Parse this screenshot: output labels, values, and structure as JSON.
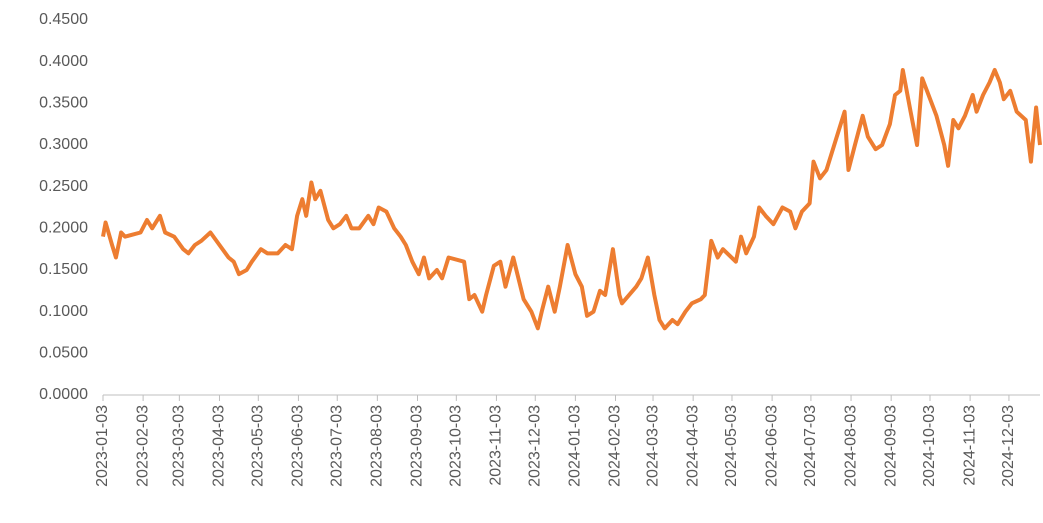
{
  "chart_data": {
    "type": "line",
    "color": "#ED7D31",
    "x": [
      "2023-01-03",
      "2023-01-05",
      "2023-01-10",
      "2023-01-13",
      "2023-01-17",
      "2023-01-20",
      "2023-02-01",
      "2023-02-06",
      "2023-02-10",
      "2023-02-16",
      "2023-02-20",
      "2023-02-27",
      "2023-03-06",
      "2023-03-10",
      "2023-03-15",
      "2023-03-20",
      "2023-03-27",
      "2023-04-03",
      "2023-04-10",
      "2023-04-14",
      "2023-04-18",
      "2023-04-24",
      "2023-04-28",
      "2023-05-05",
      "2023-05-10",
      "2023-05-18",
      "2023-05-24",
      "2023-05-29",
      "2023-06-02",
      "2023-06-06",
      "2023-06-09",
      "2023-06-13",
      "2023-06-16",
      "2023-06-20",
      "2023-06-26",
      "2023-06-30",
      "2023-07-05",
      "2023-07-10",
      "2023-07-14",
      "2023-07-20",
      "2023-07-27",
      "2023-07-31",
      "2023-08-04",
      "2023-08-10",
      "2023-08-16",
      "2023-08-21",
      "2023-08-25",
      "2023-08-30",
      "2023-09-04",
      "2023-09-08",
      "2023-09-12",
      "2023-09-18",
      "2023-09-22",
      "2023-09-27",
      "2023-10-09",
      "2023-10-13",
      "2023-10-17",
      "2023-10-23",
      "2023-10-26",
      "2023-11-01",
      "2023-11-06",
      "2023-11-10",
      "2023-11-16",
      "2023-11-20",
      "2023-11-24",
      "2023-11-30",
      "2023-12-05",
      "2023-12-08",
      "2023-12-13",
      "2023-12-18",
      "2023-12-22",
      "2023-12-28",
      "2024-01-03",
      "2024-01-08",
      "2024-01-12",
      "2024-01-17",
      "2024-01-22",
      "2024-01-26",
      "2024-02-01",
      "2024-02-06",
      "2024-02-08",
      "2024-02-19",
      "2024-02-23",
      "2024-02-28",
      "2024-03-04",
      "2024-03-08",
      "2024-03-12",
      "2024-03-18",
      "2024-03-22",
      "2024-03-28",
      "2024-04-02",
      "2024-04-09",
      "2024-04-12",
      "2024-04-17",
      "2024-04-22",
      "2024-04-26",
      "2024-05-06",
      "2024-05-10",
      "2024-05-14",
      "2024-05-20",
      "2024-05-24",
      "2024-05-29",
      "2024-06-04",
      "2024-06-11",
      "2024-06-17",
      "2024-06-21",
      "2024-06-26",
      "2024-07-02",
      "2024-07-05",
      "2024-07-10",
      "2024-07-15",
      "2024-07-22",
      "2024-07-29",
      "2024-08-01",
      "2024-08-06",
      "2024-08-12",
      "2024-08-16",
      "2024-08-22",
      "2024-08-27",
      "2024-09-02",
      "2024-09-06",
      "2024-09-10",
      "2024-09-12",
      "2024-09-18",
      "2024-09-23",
      "2024-09-27",
      "2024-10-08",
      "2024-10-14",
      "2024-10-17",
      "2024-10-21",
      "2024-10-25",
      "2024-10-30",
      "2024-11-05",
      "2024-11-08",
      "2024-11-13",
      "2024-11-18",
      "2024-11-22",
      "2024-11-26",
      "2024-11-29",
      "2024-12-04",
      "2024-12-09",
      "2024-12-16",
      "2024-12-20",
      "2024-12-24",
      "2024-12-27"
    ],
    "values": [
      0.19,
      0.207,
      0.18,
      0.165,
      0.195,
      0.19,
      0.195,
      0.21,
      0.2,
      0.215,
      0.195,
      0.19,
      0.175,
      0.17,
      0.18,
      0.185,
      0.195,
      0.18,
      0.165,
      0.16,
      0.145,
      0.15,
      0.16,
      0.175,
      0.17,
      0.17,
      0.18,
      0.175,
      0.215,
      0.235,
      0.215,
      0.255,
      0.235,
      0.245,
      0.21,
      0.2,
      0.205,
      0.215,
      0.2,
      0.2,
      0.215,
      0.205,
      0.225,
      0.22,
      0.2,
      0.19,
      0.18,
      0.16,
      0.145,
      0.165,
      0.14,
      0.15,
      0.14,
      0.165,
      0.16,
      0.115,
      0.12,
      0.1,
      0.12,
      0.155,
      0.16,
      0.13,
      0.165,
      0.14,
      0.115,
      0.1,
      0.08,
      0.1,
      0.13,
      0.1,
      0.13,
      0.18,
      0.145,
      0.13,
      0.095,
      0.1,
      0.125,
      0.12,
      0.175,
      0.12,
      0.11,
      0.13,
      0.14,
      0.165,
      0.12,
      0.09,
      0.08,
      0.09,
      0.085,
      0.1,
      0.11,
      0.115,
      0.12,
      0.185,
      0.165,
      0.175,
      0.16,
      0.19,
      0.17,
      0.19,
      0.225,
      0.215,
      0.205,
      0.225,
      0.22,
      0.2,
      0.22,
      0.23,
      0.28,
      0.26,
      0.27,
      0.305,
      0.34,
      0.27,
      0.3,
      0.335,
      0.31,
      0.295,
      0.3,
      0.325,
      0.36,
      0.365,
      0.39,
      0.34,
      0.3,
      0.38,
      0.335,
      0.3,
      0.275,
      0.33,
      0.32,
      0.335,
      0.36,
      0.34,
      0.36,
      0.375,
      0.39,
      0.375,
      0.355,
      0.365,
      0.34,
      0.33,
      0.28,
      0.345,
      0.3
    ],
    "xlim": [
      "2023-01-03",
      "2024-12-27"
    ],
    "xticks": [
      "2023-01-03",
      "2023-02-03",
      "2023-03-03",
      "2023-04-03",
      "2023-05-03",
      "2023-06-03",
      "2023-07-03",
      "2023-08-03",
      "2023-09-03",
      "2023-10-03",
      "2023-11-03",
      "2023-12-03",
      "2024-01-03",
      "2024-02-03",
      "2024-03-03",
      "2024-04-03",
      "2024-05-03",
      "2024-06-03",
      "2024-07-03",
      "2024-08-03",
      "2024-09-03",
      "2024-10-03",
      "2024-11-03",
      "2024-12-03"
    ],
    "ylim": [
      0,
      0.45
    ],
    "yticks": [
      {
        "value": 0,
        "label": "0.0000"
      },
      {
        "value": 0.05,
        "label": "0.0500"
      },
      {
        "value": 0.1,
        "label": "0.1000"
      },
      {
        "value": 0.15,
        "label": "0.1500"
      },
      {
        "value": 0.2,
        "label": "0.2000"
      },
      {
        "value": 0.25,
        "label": "0.2500"
      },
      {
        "value": 0.3,
        "label": "0.3000"
      },
      {
        "value": 0.35,
        "label": "0.3500"
      },
      {
        "value": 0.4,
        "label": "0.4000"
      },
      {
        "value": 0.45,
        "label": "0.4500"
      }
    ],
    "grid": false
  }
}
